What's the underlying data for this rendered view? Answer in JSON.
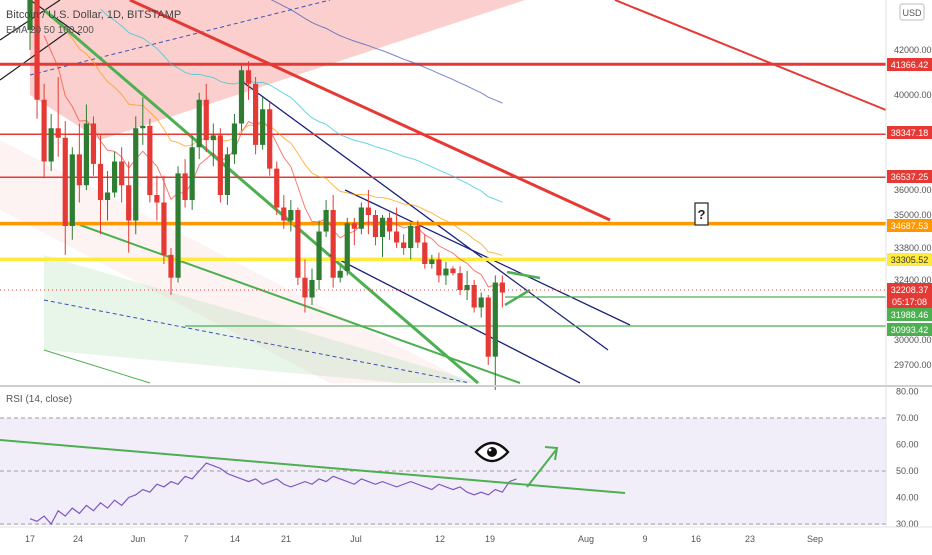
{
  "header": {
    "symbol_title": "Bitcoin / U.S. Dollar, 1D, BITSTAMP",
    "indicator_label": "EMA 20 50 100 200",
    "currency_label": "USD"
  },
  "colors": {
    "up": "#2e7d32",
    "down": "#e53935",
    "hline_red": "#e53935",
    "hline_orange": "#ff9800",
    "hline_yellow": "#ffeb3b",
    "channel_green": "#4caf50",
    "channel_blue": "#1a237e",
    "rsi": "#7e57c2",
    "rsi_band": "#ede7f6"
  },
  "chart_data": [
    {
      "type": "candlestick",
      "title": "Bitcoin / U.S. Dollar, 1D, BITSTAMP",
      "ylabel": "USD",
      "y_ticks": [
        "42000.00",
        "40000.00",
        "36000.00",
        "35000.00",
        "33800.00",
        "32400.00",
        "30000.00",
        "29700.00"
      ],
      "x_ticks": [
        "17",
        "24",
        "Jun",
        "7",
        "14",
        "21",
        "Jul",
        "12",
        "19",
        "Aug",
        "9",
        "16",
        "23",
        "Sep"
      ],
      "price_labels": [
        {
          "text": "41366.42",
          "value": 41366.42,
          "color": "#e53935"
        },
        {
          "text": "38347.18",
          "value": 38347.18,
          "color": "#e53935"
        },
        {
          "text": "36537.25",
          "value": 36537.25,
          "color": "#e53935"
        },
        {
          "text": "34687.53",
          "value": 34687.53,
          "color": "#ff9800"
        },
        {
          "text": "33305.52",
          "value": 33305.52,
          "color": "#ffeb3b"
        },
        {
          "text": "32208.37",
          "value": 32208.37,
          "color": "#e53935"
        },
        {
          "text": "05:17:08",
          "value": 31550,
          "color": "#e53935"
        },
        {
          "text": "31988.46",
          "value": 31988.46,
          "color": "#4caf50"
        },
        {
          "text": "30993.42",
          "value": 30993.42,
          "color": "#4caf50"
        }
      ],
      "annotations": [
        "?"
      ],
      "series": [
        {
          "name": "BTCUSD",
          "candles": [
            [
              43000,
              45500,
              42000,
              44500
            ],
            [
              44500,
              45000,
              39000,
              39800
            ],
            [
              39800,
              40500,
              36500,
              37200
            ],
            [
              37200,
              39200,
              36800,
              38600
            ],
            [
              38600,
              40800,
              37400,
              38200
            ],
            [
              38200,
              38900,
              33500,
              34600
            ],
            [
              34600,
              37800,
              34100,
              37500
            ],
            [
              37500,
              38800,
              35500,
              36200
            ],
            [
              36200,
              39600,
              36000,
              38800
            ],
            [
              38800,
              39100,
              36600,
              37100
            ],
            [
              37100,
              38300,
              34300,
              35600
            ],
            [
              35600,
              36800,
              34800,
              35900
            ],
            [
              35900,
              37600,
              35700,
              37200
            ],
            [
              37200,
              37800,
              35500,
              36200
            ],
            [
              36200,
              37200,
              33600,
              34800
            ],
            [
              34800,
              39100,
              34300,
              38600
            ],
            [
              38600,
              39900,
              37900,
              38700
            ],
            [
              38700,
              39000,
              35500,
              35800
            ],
            [
              35800,
              36600,
              34800,
              35500
            ],
            [
              35500,
              36600,
              33100,
              33500
            ],
            [
              33500,
              33800,
              31800,
              32500
            ],
            [
              32500,
              37000,
              32300,
              36700
            ],
            [
              36700,
              37300,
              35300,
              35600
            ],
            [
              35600,
              38300,
              35200,
              37800
            ],
            [
              37800,
              40100,
              37300,
              39800
            ],
            [
              39800,
              40500,
              37600,
              38100
            ],
            [
              38100,
              38800,
              37000,
              38300
            ],
            [
              38300,
              38600,
              35500,
              35800
            ],
            [
              35800,
              37800,
              35400,
              37500
            ],
            [
              37500,
              39200,
              37100,
              38800
            ],
            [
              38800,
              41300,
              38500,
              41100
            ],
            [
              41100,
              41500,
              39800,
              40500
            ],
            [
              40500,
              40800,
              37500,
              37900
            ],
            [
              37900,
              39900,
              37700,
              39400
            ],
            [
              39400,
              39700,
              36600,
              36900
            ],
            [
              36900,
              37200,
              35000,
              35300
            ],
            [
              35300,
              35800,
              34500,
              34800
            ],
            [
              34800,
              35600,
              34400,
              35200
            ],
            [
              35200,
              35300,
              32200,
              32500
            ],
            [
              32500,
              33300,
              31100,
              31700
            ],
            [
              31700,
              32900,
              31400,
              32400
            ],
            [
              32400,
              34800,
              32000,
              34400
            ],
            [
              34400,
              35600,
              34200,
              35200
            ],
            [
              35200,
              35800,
              32100,
              32500
            ],
            [
              32500,
              33000,
              32300,
              32800
            ],
            [
              32800,
              34900,
              32600,
              34700
            ],
            [
              34700,
              34900,
              33900,
              34500
            ],
            [
              34500,
              35500,
              34300,
              35300
            ],
            [
              35300,
              36000,
              34300,
              35000
            ],
            [
              35000,
              35200,
              33900,
              34200
            ],
            [
              34200,
              35000,
              33400,
              34900
            ],
            [
              34900,
              35100,
              34100,
              34400
            ],
            [
              34400,
              35300,
              33800,
              34000
            ],
            [
              34000,
              34300,
              33500,
              33800
            ],
            [
              33800,
              34700,
              33300,
              34600
            ],
            [
              34600,
              34800,
              33800,
              34000
            ],
            [
              34000,
              34300,
              32900,
              33100
            ],
            [
              33100,
              33500,
              32900,
              33300
            ],
            [
              33300,
              33600,
              32300,
              32600
            ],
            [
              32600,
              33200,
              32200,
              32900
            ],
            [
              32900,
              33000,
              32600,
              32700
            ],
            [
              32700,
              33000,
              31800,
              32000
            ],
            [
              32000,
              32800,
              31600,
              32200
            ],
            [
              32200,
              32400,
              31100,
              31300
            ],
            [
              31300,
              31900,
              30900,
              31700
            ],
            [
              31700,
              31800,
              29700,
              29800
            ],
            [
              29800,
              32600,
              29400,
              32300
            ],
            [
              32300,
              32600,
              31300,
              31900
            ]
          ]
        },
        {
          "name": "EMA 20",
          "color": "#f44336"
        },
        {
          "name": "EMA 50",
          "color": "#ff9800"
        },
        {
          "name": "EMA 100",
          "color": "#26c6da"
        },
        {
          "name": "EMA 200",
          "color": "#3f51b5"
        }
      ]
    },
    {
      "type": "line",
      "title": "RSI (14, close)",
      "y_ticks": [
        "80.00",
        "70.00",
        "60.00",
        "50.00",
        "40.00",
        "30.00"
      ],
      "ylim": [
        30,
        80
      ],
      "band": [
        30,
        70
      ],
      "series": [
        {
          "name": "RSI",
          "values": [
            32,
            31,
            33,
            30,
            35,
            33,
            36,
            34,
            37,
            35,
            38,
            36,
            39,
            37,
            40,
            41,
            43,
            42,
            45,
            44,
            46,
            45,
            48,
            47,
            50,
            53,
            52,
            51,
            49,
            48,
            47,
            46,
            47,
            45,
            46,
            47,
            45,
            44,
            45,
            46,
            45,
            47,
            46,
            48,
            47,
            46,
            45,
            47,
            46,
            45,
            46,
            45,
            44,
            45,
            46,
            45,
            44,
            43,
            45,
            44,
            43,
            44,
            42,
            41,
            42,
            41,
            43,
            42,
            46,
            47
          ]
        }
      ]
    }
  ]
}
